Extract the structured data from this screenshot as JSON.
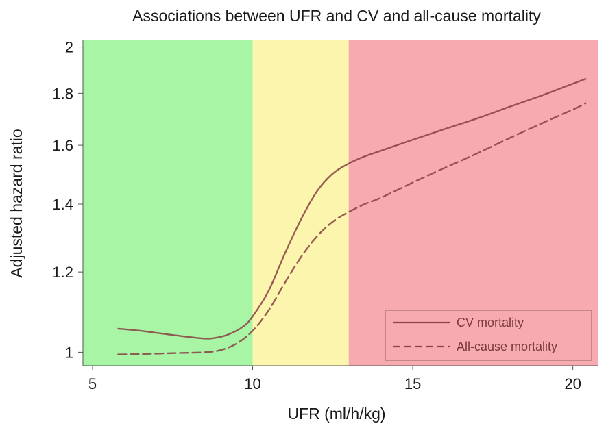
{
  "chart_data": {
    "type": "line",
    "title": "Associations between UFR and CV and all-cause mortality",
    "xlabel": "UFR (ml/h/kg)",
    "ylabel": "Adjusted hazard ratio",
    "xlim": [
      4.7,
      20.8
    ],
    "ylim": [
      0.97,
      2.03
    ],
    "y_scale": "log",
    "x_ticks": [
      5,
      10,
      15,
      20
    ],
    "y_ticks": [
      1,
      1.2,
      1.4,
      1.6,
      1.8,
      2
    ],
    "x_tick_labels": [
      "5",
      "10",
      "15",
      "20"
    ],
    "y_tick_labels": [
      "1",
      "1.2",
      "1.4",
      "1.6",
      "1.8",
      "2"
    ],
    "regions": [
      {
        "x_start": 4.7,
        "x_end": 10,
        "color": "#a8f5a5"
      },
      {
        "x_start": 10,
        "x_end": 13,
        "color": "#fbf5ad"
      },
      {
        "x_start": 13,
        "x_end": 20.8,
        "color": "#f7abb1"
      }
    ],
    "series": [
      {
        "name": "CV mortality",
        "style": "solid",
        "color": "#8a4545",
        "x": [
          5.8,
          6.5,
          7.5,
          8.3,
          8.7,
          9.2,
          9.7,
          10.0,
          10.5,
          11.0,
          11.5,
          12.0,
          12.5,
          13.0,
          13.5,
          14.0,
          15.0,
          16.0,
          17.0,
          18.0,
          19.0,
          20.0,
          20.4
        ],
        "y": [
          1.055,
          1.05,
          1.04,
          1.033,
          1.032,
          1.04,
          1.06,
          1.085,
          1.15,
          1.25,
          1.35,
          1.44,
          1.5,
          1.535,
          1.56,
          1.58,
          1.62,
          1.66,
          1.7,
          1.745,
          1.79,
          1.84,
          1.86
        ]
      },
      {
        "name": "All-cause mortality",
        "style": "dashed",
        "color": "#8a4545",
        "x": [
          5.8,
          6.5,
          7.5,
          8.5,
          9.0,
          9.5,
          10.0,
          10.5,
          11.0,
          11.5,
          12.0,
          12.5,
          13.0,
          13.5,
          14.0,
          15.0,
          16.0,
          17.0,
          18.0,
          19.0,
          20.0,
          20.4
        ],
        "y": [
          0.995,
          0.996,
          0.998,
          1.0,
          1.005,
          1.02,
          1.05,
          1.1,
          1.17,
          1.24,
          1.3,
          1.345,
          1.375,
          1.4,
          1.42,
          1.47,
          1.52,
          1.57,
          1.625,
          1.68,
          1.735,
          1.76
        ]
      }
    ],
    "legend": {
      "position": "bottom-right",
      "entries": [
        "CV mortality",
        "All-cause mortality"
      ]
    },
    "grid": false
  }
}
